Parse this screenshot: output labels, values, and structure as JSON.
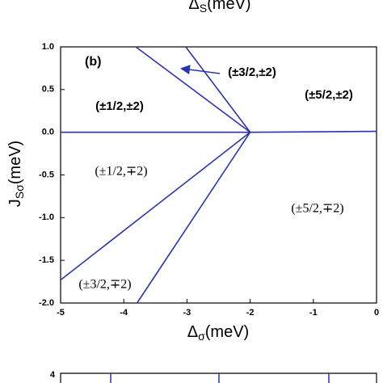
{
  "upper_panel_xlabel": {
    "symbol": "Δ",
    "subscript": "S",
    "unit": "(meV)"
  },
  "chart_data": {
    "type": "line",
    "panel_label": "(b)",
    "xlabel": {
      "symbol": "Δ",
      "subscript": "σ",
      "unit": "(meV)"
    },
    "ylabel": {
      "symbol": "J",
      "subscript": "Sσ",
      "unit": "(meV)"
    },
    "xlim": [
      -5,
      0
    ],
    "ylim": [
      -2,
      1
    ],
    "xticks": [
      -5,
      -4,
      -3,
      -2,
      -1,
      0
    ],
    "yticks": [
      {
        "value": -2,
        "label": "-2.0"
      },
      {
        "value": -1.5,
        "label": "-1.5"
      },
      {
        "value": -1,
        "label": "-1.0"
      },
      {
        "value": -0.5,
        "label": "-0.5"
      },
      {
        "value": 0,
        "label": "0.0"
      },
      {
        "value": 0.5,
        "label": "0.5"
      },
      {
        "value": 1,
        "label": "1.0"
      }
    ],
    "series": [
      {
        "color": "#2a34b0",
        "x": [
          -5,
          -2,
          0
        ],
        "values": [
          0,
          0,
          0.01
        ]
      },
      {
        "color": "#2a34b0",
        "x": [
          -3.81,
          -2
        ],
        "values": [
          1,
          0
        ]
      },
      {
        "color": "#2a34b0",
        "x": [
          -3.02,
          -2
        ],
        "values": [
          1,
          0
        ]
      },
      {
        "color": "#2a34b0",
        "x": [
          -5,
          -2
        ],
        "values": [
          -1.73,
          0
        ]
      },
      {
        "color": "#2a34b0",
        "x": [
          -3.79,
          -2
        ],
        "values": [
          -2,
          0
        ]
      }
    ],
    "annotations": [
      "(±3/2,±2)",
      "(±1/2,±2)",
      "(±5/2,±2)",
      "(±1/2,∓2)",
      "(±5/2,∓2)",
      "(±3/2,∓2)"
    ]
  },
  "lower_panel": {
    "ytick": 4
  }
}
